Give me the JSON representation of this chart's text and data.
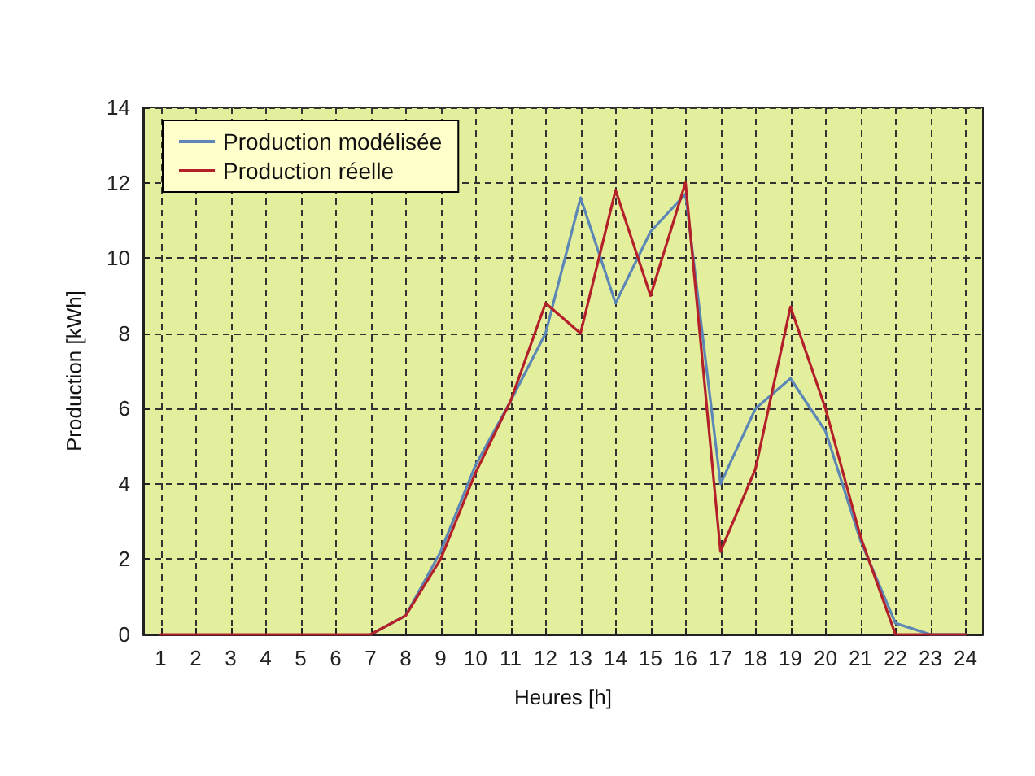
{
  "chart_data": {
    "type": "line",
    "xlabel": "Heures [h]",
    "ylabel": "Production [kWh]",
    "x": [
      1,
      2,
      3,
      4,
      5,
      6,
      7,
      8,
      9,
      10,
      11,
      12,
      13,
      14,
      15,
      16,
      17,
      18,
      19,
      20,
      21,
      22,
      23,
      24
    ],
    "series": [
      {
        "name": "Production modélisée",
        "color": "#5b86b5",
        "values": [
          null,
          null,
          null,
          null,
          null,
          null,
          0,
          0.5,
          2.2,
          4.5,
          6.2,
          8,
          11.6,
          8.8,
          10.7,
          11.7,
          4,
          6,
          6.8,
          5.4,
          2.5,
          0.3,
          0,
          0
        ]
      },
      {
        "name": "Production réelle",
        "color": "#b3202a",
        "values": [
          0,
          0,
          0,
          0,
          0,
          0,
          0,
          0.5,
          2,
          4.3,
          6.2,
          8.8,
          8,
          11.8,
          9,
          12,
          2.2,
          4.4,
          8.7,
          6,
          2.6,
          0,
          0,
          0
        ]
      }
    ],
    "xlim": [
      0.5,
      24.5
    ],
    "xticks": [
      1,
      2,
      3,
      4,
      5,
      6,
      7,
      8,
      9,
      10,
      11,
      12,
      13,
      14,
      15,
      16,
      17,
      18,
      19,
      20,
      21,
      22,
      23,
      24
    ],
    "ylim": [
      0,
      14
    ],
    "yticks": [
      0,
      2,
      4,
      6,
      8,
      10,
      12,
      14
    ],
    "grid": true,
    "legend": "top left",
    "marker": "none",
    "line_style": "solid"
  }
}
